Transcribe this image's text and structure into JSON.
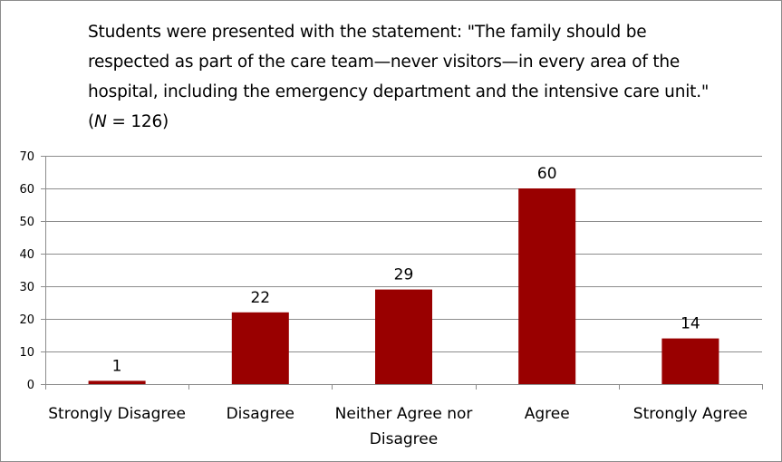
{
  "chart_data": {
    "type": "bar",
    "title_parts": [
      {
        "text": "Students were presented with the statement: \"The family should be respected as part of the care team—never visitors—in every area of the hospital, including the emergency department and the intensive care unit.\" (",
        "italic": false
      },
      {
        "text": "N",
        "italic": true
      },
      {
        "text": " = 126)",
        "italic": false
      }
    ],
    "categories": [
      "Strongly Disagree",
      "Disagree",
      "Neither Agree nor Disagree",
      "Agree",
      "Strongly Agree"
    ],
    "category_lines": [
      [
        "Strongly Disagree"
      ],
      [
        "Disagree"
      ],
      [
        "Neither Agree nor",
        "Disagree"
      ],
      [
        "Agree"
      ],
      [
        "Strongly Agree"
      ]
    ],
    "values": [
      1,
      22,
      29,
      60,
      14
    ],
    "data_labels": [
      "1",
      "22",
      "29",
      "60",
      "14"
    ],
    "ylim": [
      0,
      70
    ],
    "yticks": [
      0,
      10,
      20,
      30,
      40,
      50,
      60,
      70
    ],
    "grid": true,
    "legend": "none",
    "colors": {
      "bar": "#990000",
      "grid": "#8c8c8c",
      "axis": "#8c8c8c"
    }
  }
}
